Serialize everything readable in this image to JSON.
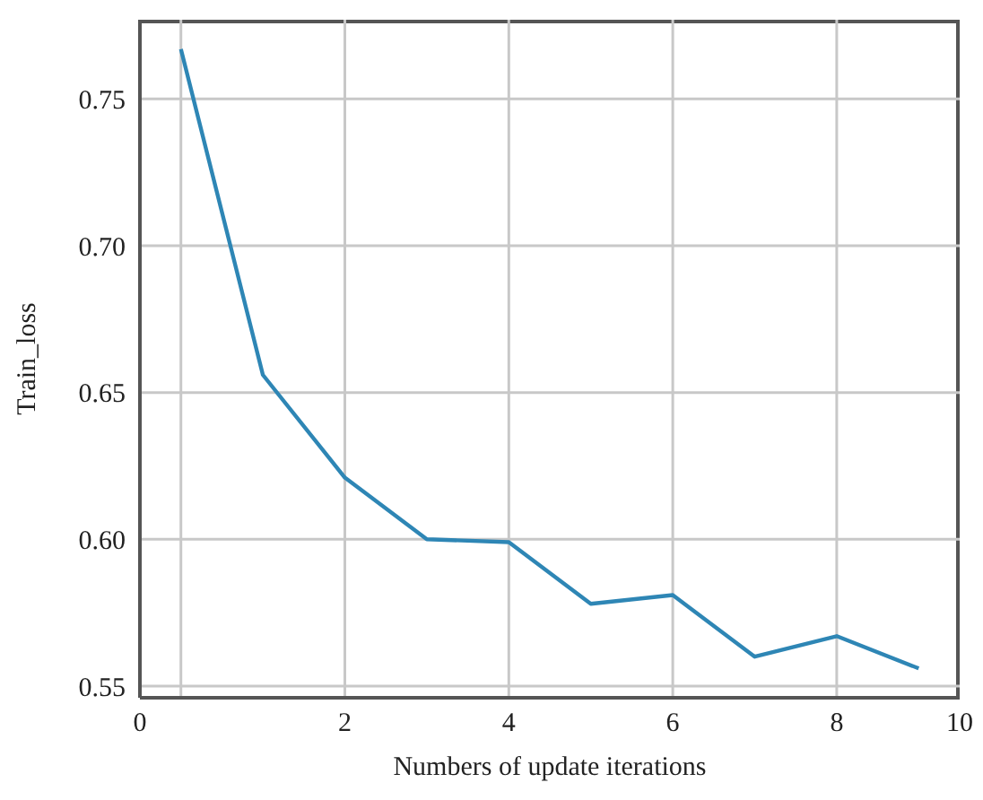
{
  "chart_data": {
    "type": "line",
    "xlabel": "Numbers of update iterations",
    "ylabel": "Train_loss",
    "x": [
      0,
      1,
      2,
      3,
      4,
      5,
      6,
      7,
      8,
      9
    ],
    "series": [
      {
        "color": "#2e86b5",
        "values": [
          0.767,
          0.656,
          0.621,
          0.6,
          0.599,
          0.578,
          0.581,
          0.56,
          0.567,
          0.556
        ]
      }
    ],
    "xlim": [
      -0.5,
      9.5
    ],
    "xticks": [
      {
        "value": -0.5,
        "label": "0"
      },
      {
        "value": 0,
        "label": null
      },
      2,
      4,
      6,
      8,
      {
        "value": 9.5,
        "label": "10"
      }
    ],
    "ylim": [
      0.546,
      0.777
    ],
    "yticks": [
      0.55,
      {
        "value": 0.6,
        "label": "0.60"
      },
      0.65,
      {
        "value": 0.7,
        "label": "0.70"
      },
      0.75
    ],
    "grid": true,
    "legend": false,
    "marker": "none",
    "line_style": "solid"
  }
}
